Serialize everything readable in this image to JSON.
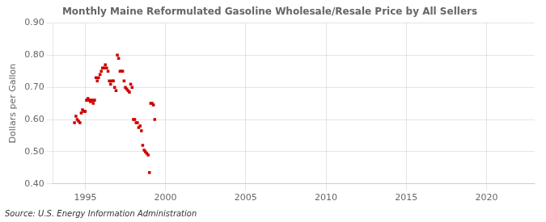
{
  "chart_data": {
    "type": "scatter",
    "title": "Monthly Maine Reformulated Gasoline Wholesale/Resale Price by All Sellers",
    "ylabel": "Dollars per Gallon",
    "source": "Source: U.S. Energy Information Administration",
    "color": "#cc0000",
    "marker": "square",
    "grid": true,
    "xlim": [
      1993.0,
      2023.0
    ],
    "ylim": [
      0.4,
      0.9
    ],
    "xticks": [
      1995,
      2000,
      2005,
      2010,
      2015,
      2020
    ],
    "yticks": [
      {
        "value": 0.4,
        "label": "0.40"
      },
      {
        "value": 0.5,
        "label": "0.50"
      },
      {
        "value": 0.6,
        "label": "0.60"
      },
      {
        "value": 0.7,
        "label": "0.70"
      },
      {
        "value": 0.8,
        "label": "0.80"
      },
      {
        "value": 0.9,
        "label": "0.90"
      }
    ],
    "x": [
      1994.33,
      1994.42,
      1994.5,
      1994.58,
      1994.67,
      1994.75,
      1994.83,
      1994.92,
      1995.0,
      1995.08,
      1995.17,
      1995.25,
      1995.33,
      1995.42,
      1995.5,
      1995.58,
      1995.67,
      1995.75,
      1995.83,
      1995.92,
      1996.0,
      1996.08,
      1996.17,
      1996.25,
      1996.33,
      1996.42,
      1996.5,
      1996.58,
      1996.67,
      1996.75,
      1996.83,
      1996.92,
      1997.0,
      1997.08,
      1997.17,
      1997.25,
      1997.33,
      1997.42,
      1997.5,
      1997.58,
      1997.67,
      1997.75,
      1997.83,
      1997.92,
      1998.0,
      1998.08,
      1998.17,
      1998.25,
      1998.33,
      1998.42,
      1998.5,
      1998.58,
      1998.67,
      1998.75,
      1998.83,
      1998.92,
      1999.0,
      1999.08,
      1999.17,
      1999.25,
      1999.33
    ],
    "values": [
      0.59,
      0.61,
      0.6,
      0.595,
      0.59,
      0.62,
      0.63,
      0.625,
      0.625,
      0.66,
      0.665,
      0.66,
      0.655,
      0.66,
      0.65,
      0.66,
      0.73,
      0.72,
      0.73,
      0.74,
      0.75,
      0.76,
      0.76,
      0.77,
      0.76,
      0.75,
      0.72,
      0.71,
      0.72,
      0.72,
      0.7,
      0.69,
      0.8,
      0.79,
      0.75,
      0.75,
      0.75,
      0.72,
      0.7,
      0.695,
      0.69,
      0.685,
      0.71,
      0.7,
      0.6,
      0.6,
      0.59,
      0.59,
      0.575,
      0.58,
      0.565,
      0.52,
      0.505,
      0.5,
      0.495,
      0.49,
      0.435,
      0.65,
      0.65,
      0.645,
      0.6
    ]
  }
}
